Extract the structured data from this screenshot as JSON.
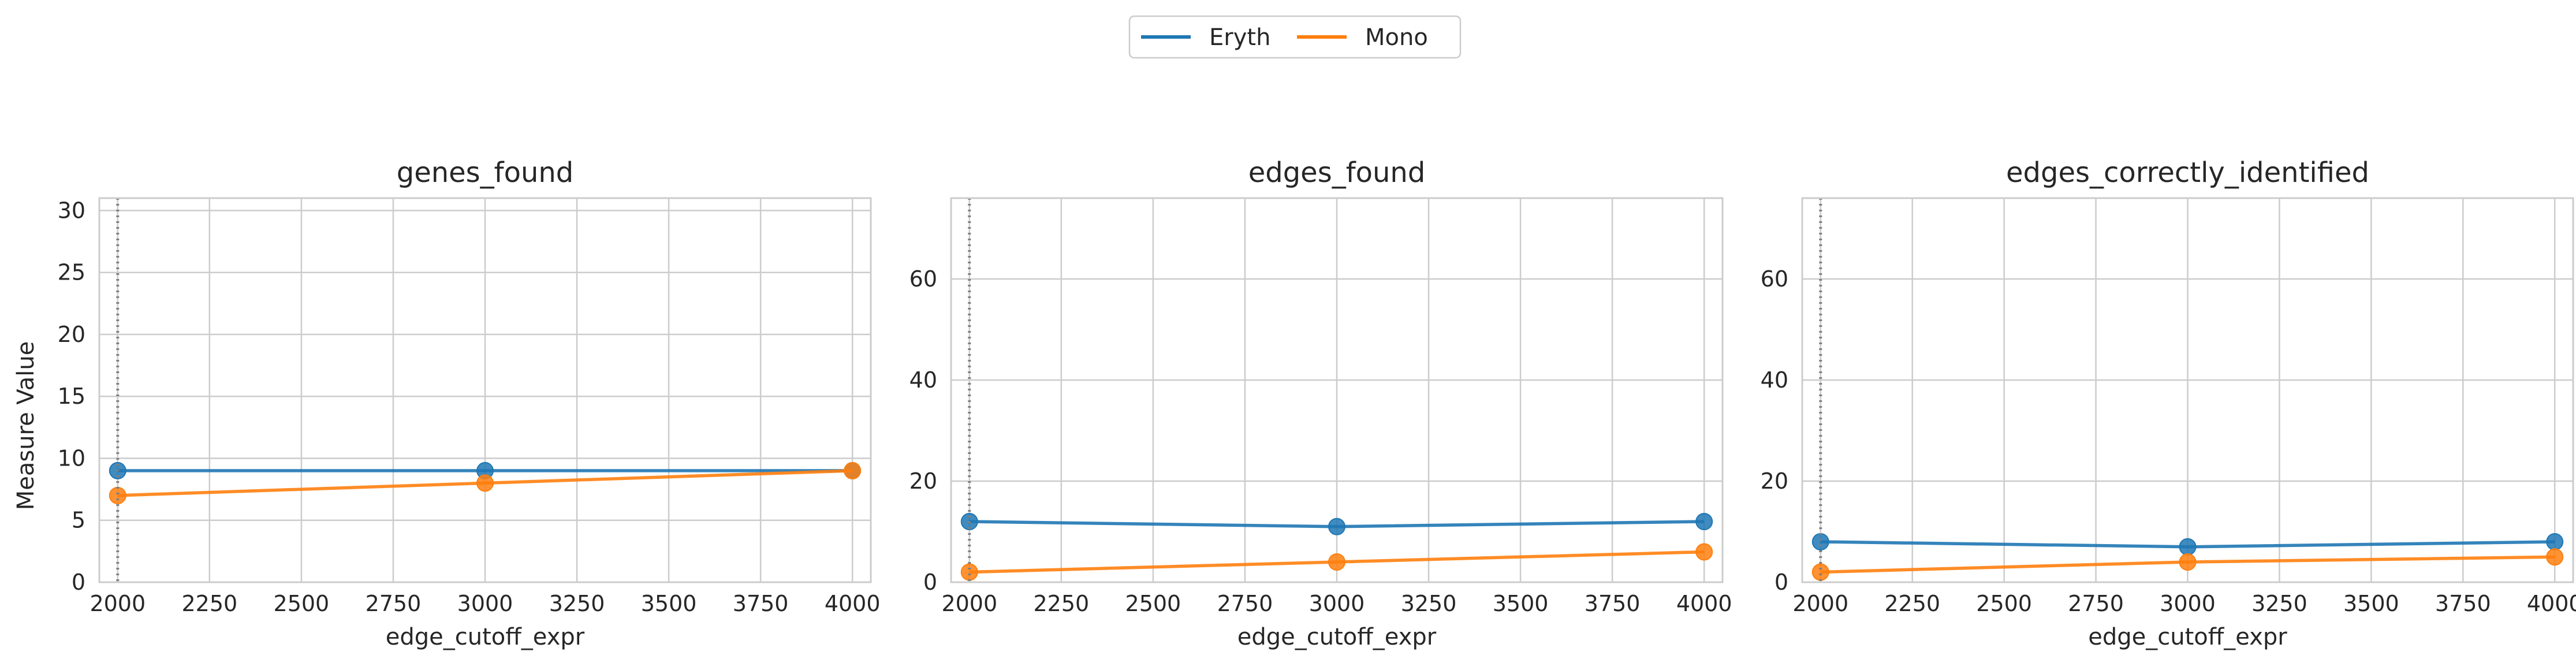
{
  "figure": {
    "ylabel": "Measure Value"
  },
  "legend": {
    "placement": "top-center",
    "entries": [
      {
        "name": "Eryth",
        "color": "#1f77b4"
      },
      {
        "name": "Mono",
        "color": "#ff7f0e"
      }
    ]
  },
  "chart_data": [
    {
      "type": "line",
      "title": "genes_found",
      "xlabel": "edge_cutoff_expr",
      "x": [
        2000,
        3000,
        4000
      ],
      "xlim": [
        1950,
        4050
      ],
      "ylim": [
        0,
        31
      ],
      "xticks": [
        2000,
        2250,
        2500,
        2750,
        3000,
        3250,
        3500,
        3750,
        4000
      ],
      "yticks": [
        0,
        5,
        10,
        15,
        20,
        25,
        30
      ],
      "vline_x": 2000,
      "grid": true,
      "series": [
        {
          "name": "Eryth",
          "values": [
            9,
            9,
            9
          ]
        },
        {
          "name": "Mono",
          "values": [
            7,
            8,
            9
          ]
        }
      ]
    },
    {
      "type": "line",
      "title": "edges_found",
      "xlabel": "edge_cutoff_expr",
      "x": [
        2000,
        3000,
        4000
      ],
      "xlim": [
        1950,
        4050
      ],
      "ylim": [
        0,
        76
      ],
      "xticks": [
        2000,
        2250,
        2500,
        2750,
        3000,
        3250,
        3500,
        3750,
        4000
      ],
      "yticks": [
        0,
        20,
        40,
        60
      ],
      "vline_x": 2000,
      "grid": true,
      "series": [
        {
          "name": "Eryth",
          "values": [
            12,
            11,
            12
          ]
        },
        {
          "name": "Mono",
          "values": [
            2,
            4,
            6
          ]
        }
      ]
    },
    {
      "type": "line",
      "title": "edges_correctly_identified",
      "xlabel": "edge_cutoff_expr",
      "x": [
        2000,
        3000,
        4000
      ],
      "xlim": [
        1950,
        4050
      ],
      "ylim": [
        0,
        76
      ],
      "xticks": [
        2000,
        2250,
        2500,
        2750,
        3000,
        3250,
        3500,
        3750,
        4000
      ],
      "yticks": [
        0,
        20,
        40,
        60
      ],
      "vline_x": 2000,
      "grid": true,
      "series": [
        {
          "name": "Eryth",
          "values": [
            8,
            7,
            8
          ]
        },
        {
          "name": "Mono",
          "values": [
            2,
            4,
            5
          ]
        }
      ]
    }
  ]
}
